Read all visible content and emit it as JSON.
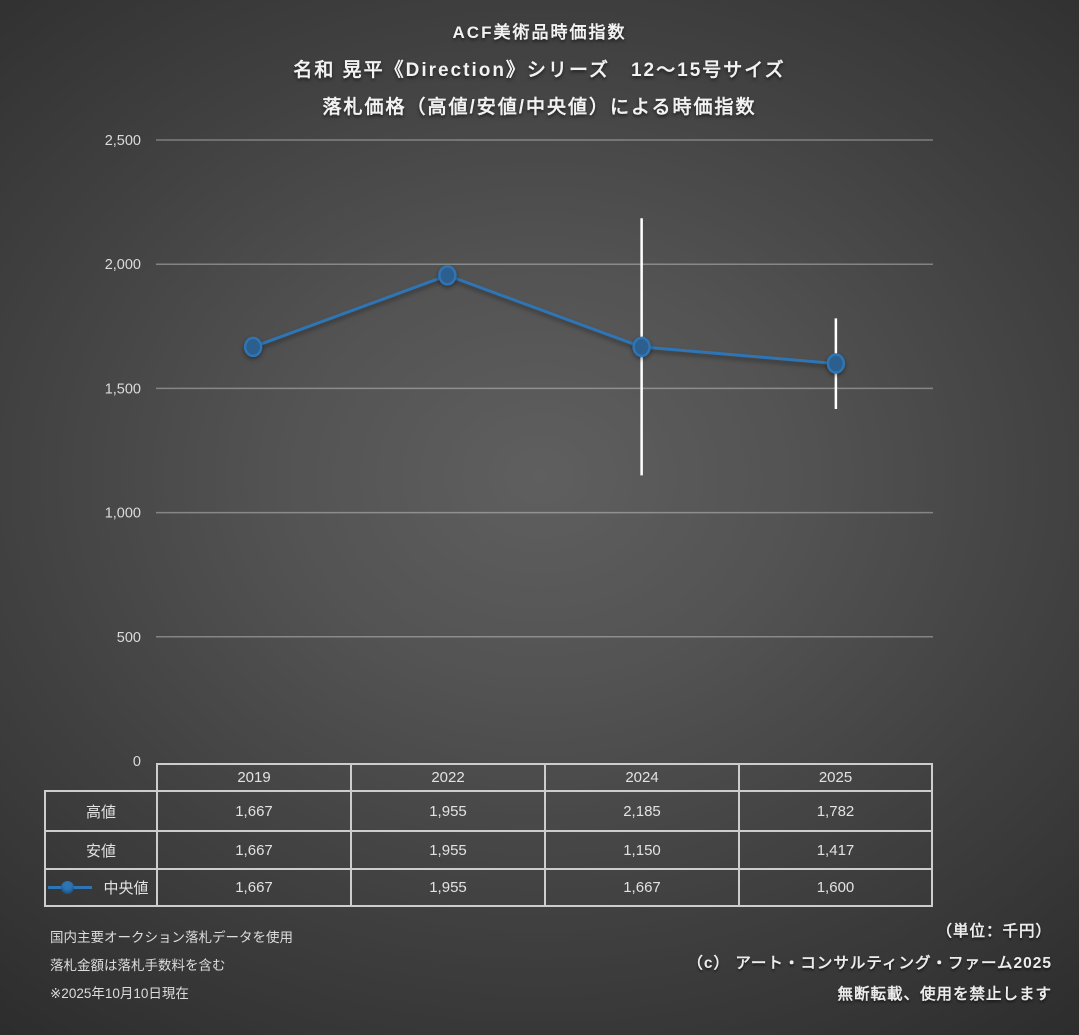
{
  "titles": {
    "line1": "ACF美術品時価指数",
    "line2": "名和 晃平《Direction》シリーズ　12～15号サイズ",
    "line3": "落札価格（高値/安値/中央値）による時価指数"
  },
  "chart_data": {
    "type": "line",
    "title": "ACF美術品時価指数　名和 晃平《Direction》シリーズ 12～15号サイズ　落札価格（高値/安値/中央値）による時価指数",
    "categories": [
      "2019",
      "2022",
      "2024",
      "2025"
    ],
    "series": [
      {
        "name": "高値",
        "role": "high",
        "values": [
          1667,
          1955,
          2185,
          1782
        ]
      },
      {
        "name": "安値",
        "role": "low",
        "values": [
          1667,
          1955,
          1150,
          1417
        ]
      },
      {
        "name": "中央値",
        "role": "median",
        "values": [
          1667,
          1955,
          1667,
          1600
        ]
      }
    ],
    "xlabel": "",
    "ylabel": "",
    "unit": "千円",
    "ylim": [
      0,
      2500
    ],
    "yticks": [
      0,
      500,
      1000,
      1500,
      2000,
      2500
    ],
    "ytick_labels": [
      "0",
      "500",
      "1,000",
      "1,500",
      "2,000",
      "2,500"
    ],
    "grid": "horizontal",
    "legend_position": "table-rows",
    "colors": {
      "median_line": "#2E75B6",
      "marker_fill": "#2D5F8E",
      "marker_stroke": "#2E75B6",
      "high_low_line": "#FFFFFF",
      "gridline": "rgba(255,255,255,0.33)"
    }
  },
  "table": {
    "col_headers": [
      "2019",
      "2022",
      "2024",
      "2025"
    ],
    "rows": [
      {
        "label": "高値",
        "values": [
          "1,667",
          "1,955",
          "2,185",
          "1,782"
        ]
      },
      {
        "label": "安値",
        "values": [
          "1,667",
          "1,955",
          "1,150",
          "1,417"
        ]
      },
      {
        "label": "中央値",
        "values": [
          "1,667",
          "1,955",
          "1,667",
          "1,600"
        ],
        "has_legend_key": true
      }
    ]
  },
  "footnotes_left": [
    "国内主要オークション落札データを使用",
    "落札金額は落札手数料を含む",
    "※2025年10月10日現在"
  ],
  "footer_right": {
    "unit_label": "（単位：千円）",
    "copyright": "（c） アート・コンサルティング・ファーム2025",
    "rights_notice": "無断転載、使用を禁止します"
  }
}
